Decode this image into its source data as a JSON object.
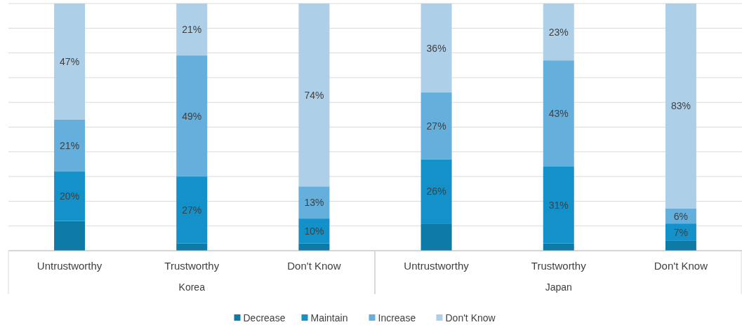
{
  "chart_data": {
    "type": "bar",
    "stacked": true,
    "categories": [
      "Untrustworthy",
      "Trustworthy",
      "Don't Know",
      "Untrustworthy",
      "Trustworthy",
      "Don't Know"
    ],
    "annotations": [
      "Korea",
      "Japan"
    ],
    "series": [
      {
        "name": "Decrease",
        "color": "#0e7aa6",
        "values": [
          12,
          3,
          3,
          11,
          3,
          4
        ],
        "value_labels": [
          null,
          null,
          null,
          null,
          null,
          null
        ]
      },
      {
        "name": "Maintain",
        "color": "#1391c8",
        "values": [
          20,
          27,
          10,
          26,
          31,
          7
        ],
        "value_labels": [
          "20%",
          "27%",
          "10%",
          "26%",
          "31%",
          "7%"
        ]
      },
      {
        "name": "Increase",
        "color": "#64afdc",
        "values": [
          21,
          49,
          13,
          27,
          43,
          6
        ],
        "value_labels": [
          "21%",
          "49%",
          "13%",
          "27%",
          "43%",
          "6%"
        ]
      },
      {
        "name": "Don't Know",
        "color": "#aecfe8",
        "values": [
          47,
          21,
          74,
          36,
          23,
          83
        ],
        "value_labels": [
          "47%",
          "21%",
          "74%",
          "36%",
          "23%",
          "83%"
        ]
      }
    ],
    "ylim": [
      0,
      100
    ],
    "yticks": [
      {
        "value": 0,
        "label": null
      },
      {
        "value": 10,
        "label": null
      },
      {
        "value": 20,
        "label": null
      },
      {
        "value": 30,
        "label": null
      },
      {
        "value": 40,
        "label": null
      },
      {
        "value": 50,
        "label": null
      },
      {
        "value": 60,
        "label": null
      },
      {
        "value": 70,
        "label": null
      },
      {
        "value": 80,
        "label": null
      },
      {
        "value": 90,
        "label": null
      },
      {
        "value": 100,
        "label": null
      }
    ],
    "tick_labels": "x",
    "grid": "y",
    "legend": "bottom"
  }
}
